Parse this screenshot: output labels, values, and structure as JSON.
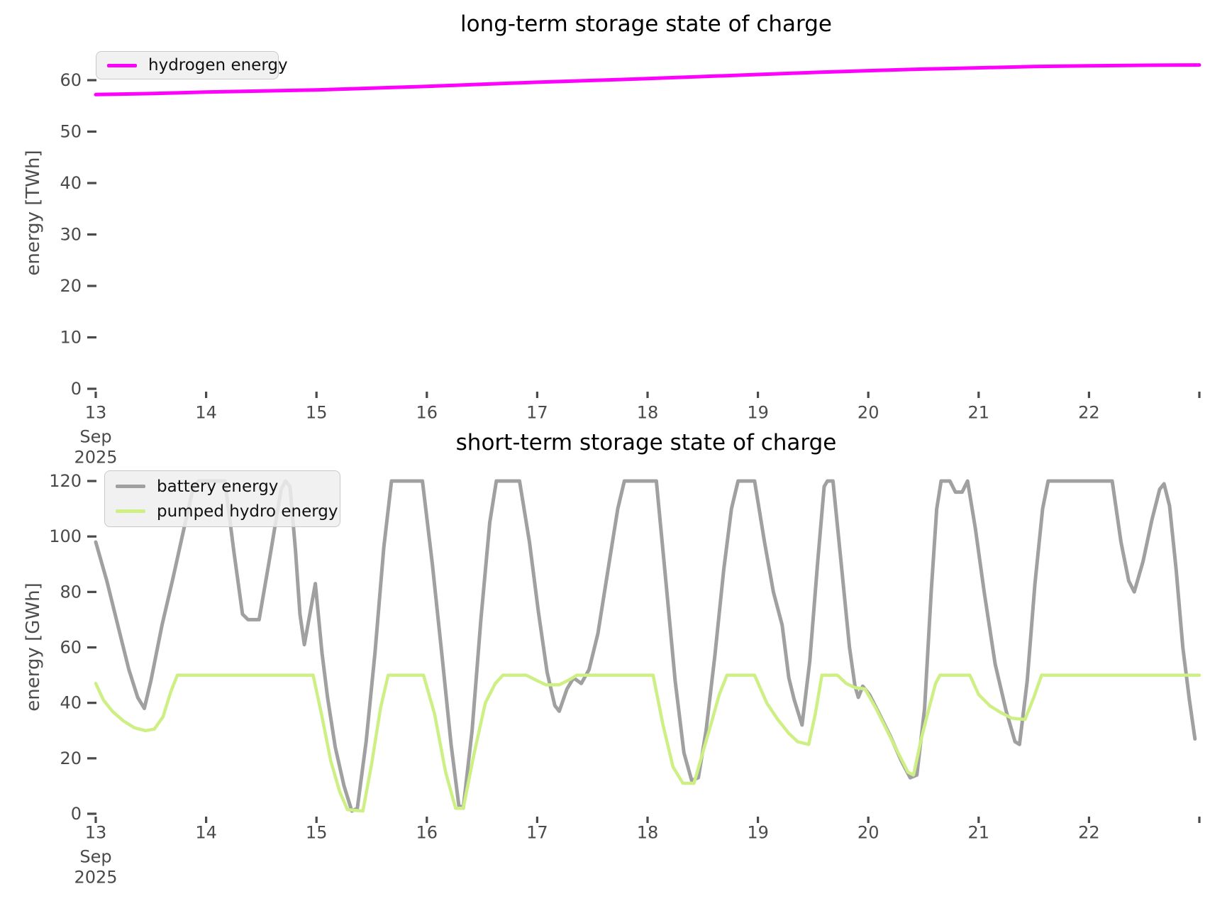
{
  "page": {
    "background": "#ffffff"
  },
  "colors": {
    "hydrogen": "#ff00ff",
    "battery": "#a0a0a0",
    "pumped_hydro": "#cdef84",
    "tick_label": "#4a4a4a",
    "axis_label": "#4d4d4d",
    "title": "#000000",
    "legend_text": "#111111"
  },
  "chart_data": [
    {
      "type": "line",
      "title": "long-term storage state of charge",
      "ylabel": "energy [TWh]",
      "x_unit": "date, September 2025 (day of month)",
      "xlim": [
        12.93,
        23.07
      ],
      "ylim": [
        0,
        67
      ],
      "grid": false,
      "legend_position": "upper left",
      "x_ticks": [
        {
          "x": 13,
          "label": "13",
          "month": "Sep",
          "year": "2025"
        },
        {
          "x": 14,
          "label": "14"
        },
        {
          "x": 15,
          "label": "15"
        },
        {
          "x": 16,
          "label": "16"
        },
        {
          "x": 17,
          "label": "17"
        },
        {
          "x": 18,
          "label": "18"
        },
        {
          "x": 19,
          "label": "19"
        },
        {
          "x": 20,
          "label": "20"
        },
        {
          "x": 21,
          "label": "21"
        },
        {
          "x": 22,
          "label": "22"
        },
        {
          "x": 23,
          "label": ""
        }
      ],
      "y_ticks": [
        0,
        10,
        20,
        30,
        40,
        50,
        60
      ],
      "series": [
        {
          "name": "hydrogen energy",
          "color": "#ff00ff",
          "points": [
            [
              13.0,
              57.2
            ],
            [
              13.5,
              57.4
            ],
            [
              14.0,
              57.7
            ],
            [
              14.5,
              57.9
            ],
            [
              15.0,
              58.1
            ],
            [
              15.5,
              58.45
            ],
            [
              16.0,
              58.8
            ],
            [
              16.5,
              59.2
            ],
            [
              17.0,
              59.6
            ],
            [
              17.5,
              59.95
            ],
            [
              18.0,
              60.3
            ],
            [
              18.5,
              60.7
            ],
            [
              19.0,
              61.1
            ],
            [
              19.5,
              61.5
            ],
            [
              20.0,
              61.85
            ],
            [
              20.5,
              62.15
            ],
            [
              21.0,
              62.4
            ],
            [
              21.5,
              62.65
            ],
            [
              22.0,
              62.8
            ],
            [
              22.5,
              62.9
            ],
            [
              23.0,
              62.95
            ]
          ]
        }
      ]
    },
    {
      "type": "line",
      "title": "short-term storage state of charge",
      "ylabel": "energy [GWh]",
      "x_unit": "date, September 2025 (day of month)",
      "xlim": [
        12.93,
        23.07
      ],
      "ylim": [
        -2,
        128
      ],
      "grid": false,
      "legend_position": "upper left",
      "x_ticks": [
        {
          "x": 13,
          "label": "13",
          "month": "Sep",
          "year": "2025"
        },
        {
          "x": 14,
          "label": "14"
        },
        {
          "x": 15,
          "label": "15"
        },
        {
          "x": 16,
          "label": "16"
        },
        {
          "x": 17,
          "label": "17"
        },
        {
          "x": 18,
          "label": "18"
        },
        {
          "x": 19,
          "label": "19"
        },
        {
          "x": 20,
          "label": "20"
        },
        {
          "x": 21,
          "label": "21"
        },
        {
          "x": 22,
          "label": "22"
        },
        {
          "x": 23,
          "label": ""
        }
      ],
      "y_ticks": [
        0,
        20,
        40,
        60,
        80,
        100,
        120
      ],
      "series": [
        {
          "name": "battery energy",
          "color": "#a0a0a0",
          "points": [
            [
              13.0,
              98
            ],
            [
              13.1,
              84
            ],
            [
              13.2,
              68
            ],
            [
              13.3,
              52
            ],
            [
              13.38,
              42
            ],
            [
              13.44,
              38
            ],
            [
              13.5,
              48
            ],
            [
              13.6,
              68
            ],
            [
              13.7,
              85
            ],
            [
              13.8,
              103
            ],
            [
              13.88,
              117
            ],
            [
              13.93,
              120
            ],
            [
              14.17,
              120
            ],
            [
              14.25,
              95
            ],
            [
              14.33,
              72
            ],
            [
              14.38,
              70
            ],
            [
              14.48,
              70
            ],
            [
              14.58,
              93
            ],
            [
              14.68,
              117
            ],
            [
              14.72,
              120
            ],
            [
              14.76,
              118
            ],
            [
              14.81,
              95
            ],
            [
              14.85,
              72
            ],
            [
              14.89,
              61
            ],
            [
              14.94,
              72
            ],
            [
              14.99,
              83
            ],
            [
              15.05,
              58
            ],
            [
              15.1,
              42
            ],
            [
              15.17,
              24
            ],
            [
              15.25,
              10
            ],
            [
              15.32,
              1
            ],
            [
              15.37,
              2
            ],
            [
              15.45,
              26
            ],
            [
              15.53,
              58
            ],
            [
              15.61,
              96
            ],
            [
              15.68,
              120
            ],
            [
              15.96,
              120
            ],
            [
              16.05,
              90
            ],
            [
              16.14,
              56
            ],
            [
              16.22,
              25
            ],
            [
              16.29,
              3
            ],
            [
              16.33,
              2
            ],
            [
              16.41,
              30
            ],
            [
              16.49,
              70
            ],
            [
              16.57,
              105
            ],
            [
              16.63,
              120
            ],
            [
              16.84,
              120
            ],
            [
              16.93,
              98
            ],
            [
              17.01,
              73
            ],
            [
              17.09,
              51
            ],
            [
              17.16,
              39
            ],
            [
              17.2,
              37
            ],
            [
              17.27,
              45
            ],
            [
              17.33,
              49
            ],
            [
              17.4,
              47
            ],
            [
              17.47,
              52
            ],
            [
              17.55,
              65
            ],
            [
              17.65,
              90
            ],
            [
              17.73,
              110
            ],
            [
              17.79,
              120
            ],
            [
              18.08,
              120
            ],
            [
              18.17,
              82
            ],
            [
              18.25,
              48
            ],
            [
              18.33,
              22
            ],
            [
              18.4,
              12
            ],
            [
              18.46,
              13
            ],
            [
              18.53,
              30
            ],
            [
              18.61,
              57
            ],
            [
              18.69,
              88
            ],
            [
              18.76,
              110
            ],
            [
              18.82,
              120
            ],
            [
              18.97,
              120
            ],
            [
              19.06,
              98
            ],
            [
              19.14,
              80
            ],
            [
              19.22,
              68
            ],
            [
              19.28,
              49
            ],
            [
              19.33,
              41
            ],
            [
              19.4,
              32
            ],
            [
              19.47,
              55
            ],
            [
              19.54,
              90
            ],
            [
              19.6,
              118
            ],
            [
              19.63,
              120
            ],
            [
              19.68,
              120
            ],
            [
              19.76,
              88
            ],
            [
              19.83,
              60
            ],
            [
              19.88,
              46
            ],
            [
              19.91,
              42
            ],
            [
              19.95,
              46
            ],
            [
              20.01,
              43
            ],
            [
              20.1,
              36
            ],
            [
              20.2,
              28
            ],
            [
              20.3,
              19
            ],
            [
              20.38,
              13
            ],
            [
              20.44,
              14
            ],
            [
              20.51,
              38
            ],
            [
              20.57,
              80
            ],
            [
              20.62,
              110
            ],
            [
              20.66,
              120
            ],
            [
              20.74,
              120
            ],
            [
              20.79,
              116
            ],
            [
              20.85,
              116
            ],
            [
              20.9,
              120
            ],
            [
              20.97,
              103
            ],
            [
              21.05,
              80
            ],
            [
              21.15,
              54
            ],
            [
              21.25,
              37
            ],
            [
              21.33,
              26
            ],
            [
              21.37,
              25
            ],
            [
              21.44,
              48
            ],
            [
              21.51,
              83
            ],
            [
              21.58,
              110
            ],
            [
              21.63,
              120
            ],
            [
              22.21,
              120
            ],
            [
              22.29,
              98
            ],
            [
              22.36,
              84
            ],
            [
              22.41,
              80
            ],
            [
              22.49,
              91
            ],
            [
              22.57,
              106
            ],
            [
              22.64,
              117
            ],
            [
              22.68,
              119
            ],
            [
              22.73,
              111
            ],
            [
              22.79,
              88
            ],
            [
              22.85,
              60
            ],
            [
              22.91,
              41
            ],
            [
              22.96,
              27
            ]
          ]
        },
        {
          "name": "pumped hydro energy",
          "color": "#cdef84",
          "points": [
            [
              13.0,
              47
            ],
            [
              13.07,
              41
            ],
            [
              13.15,
              37
            ],
            [
              13.25,
              33.5
            ],
            [
              13.35,
              31
            ],
            [
              13.45,
              30
            ],
            [
              13.53,
              30.5
            ],
            [
              13.61,
              35
            ],
            [
              13.68,
              44
            ],
            [
              13.74,
              50
            ],
            [
              14.97,
              50
            ],
            [
              15.05,
              35
            ],
            [
              15.13,
              19
            ],
            [
              15.21,
              8
            ],
            [
              15.28,
              1.5
            ],
            [
              15.42,
              1
            ],
            [
              15.5,
              18
            ],
            [
              15.58,
              38
            ],
            [
              15.65,
              50
            ],
            [
              15.97,
              50
            ],
            [
              16.07,
              36
            ],
            [
              16.17,
              15
            ],
            [
              16.26,
              2
            ],
            [
              16.33,
              2
            ],
            [
              16.43,
              22
            ],
            [
              16.53,
              40
            ],
            [
              16.62,
              47
            ],
            [
              16.69,
              50
            ],
            [
              16.9,
              50
            ],
            [
              17.0,
              48
            ],
            [
              17.08,
              46.5
            ],
            [
              17.2,
              46.5
            ],
            [
              17.3,
              48.5
            ],
            [
              17.36,
              50
            ],
            [
              18.05,
              50
            ],
            [
              18.14,
              32
            ],
            [
              18.23,
              17
            ],
            [
              18.32,
              11
            ],
            [
              18.42,
              11
            ],
            [
              18.5,
              22
            ],
            [
              18.58,
              33
            ],
            [
              18.65,
              43
            ],
            [
              18.72,
              50
            ],
            [
              18.97,
              50
            ],
            [
              19.08,
              40
            ],
            [
              19.18,
              34
            ],
            [
              19.28,
              29
            ],
            [
              19.36,
              26
            ],
            [
              19.46,
              25
            ],
            [
              19.52,
              36
            ],
            [
              19.58,
              50
            ],
            [
              19.72,
              50
            ],
            [
              19.8,
              47
            ],
            [
              19.88,
              45.5
            ],
            [
              19.97,
              45
            ],
            [
              20.07,
              38
            ],
            [
              20.17,
              30
            ],
            [
              20.27,
              22
            ],
            [
              20.36,
              15
            ],
            [
              20.41,
              14
            ],
            [
              20.48,
              27
            ],
            [
              20.55,
              38
            ],
            [
              20.61,
              47
            ],
            [
              20.65,
              50
            ],
            [
              20.92,
              50
            ],
            [
              21.0,
              43
            ],
            [
              21.1,
              39
            ],
            [
              21.2,
              36.5
            ],
            [
              21.3,
              34.5
            ],
            [
              21.42,
              34
            ],
            [
              21.5,
              42
            ],
            [
              21.57,
              50
            ],
            [
              23.0,
              50
            ]
          ]
        }
      ]
    }
  ]
}
